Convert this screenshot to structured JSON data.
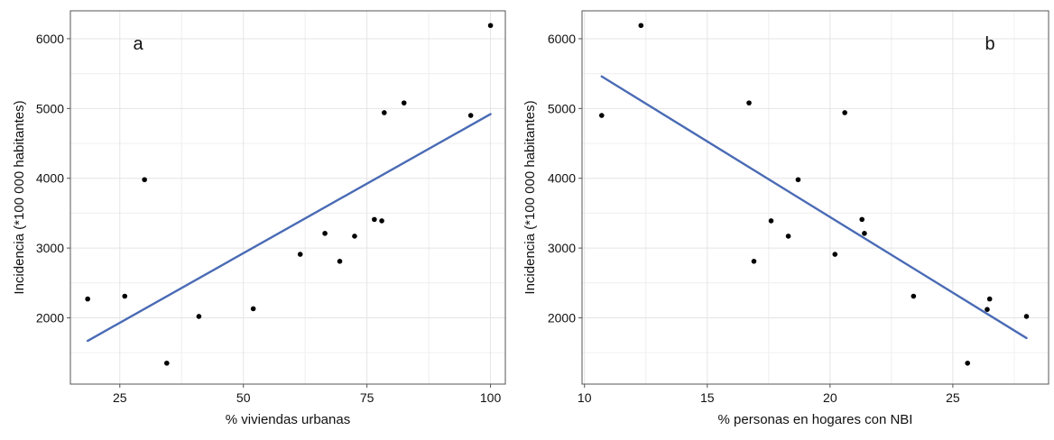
{
  "chart_data": [
    {
      "type": "scatter",
      "panel_label": "a",
      "xlabel": "% viviendas urbanas",
      "ylabel": "Incidencia (*100 000 habitantes)",
      "xlim": [
        15,
        103
      ],
      "ylim": [
        1050,
        6400
      ],
      "xticks": [
        25,
        50,
        75,
        100
      ],
      "yticks": [
        2000,
        3000,
        4000,
        5000,
        6000
      ],
      "grid": true,
      "points": [
        {
          "x": 18.5,
          "y": 2270
        },
        {
          "x": 26,
          "y": 2310
        },
        {
          "x": 30,
          "y": 3980
        },
        {
          "x": 34.5,
          "y": 1350
        },
        {
          "x": 41,
          "y": 2020
        },
        {
          "x": 52,
          "y": 2130
        },
        {
          "x": 61.5,
          "y": 2910
        },
        {
          "x": 66.5,
          "y": 3210
        },
        {
          "x": 69.5,
          "y": 2810
        },
        {
          "x": 72.5,
          "y": 3170
        },
        {
          "x": 76.5,
          "y": 3410
        },
        {
          "x": 78,
          "y": 3390
        },
        {
          "x": 78.5,
          "y": 4940
        },
        {
          "x": 82.5,
          "y": 5080
        },
        {
          "x": 96,
          "y": 4900
        },
        {
          "x": 100,
          "y": 6190
        }
      ],
      "trend": {
        "x": [
          18.5,
          100
        ],
        "y": [
          1670,
          4920
        ]
      },
      "trend_color": "#4a6bb5"
    },
    {
      "type": "scatter",
      "panel_label": "b",
      "xlabel": "% personas en hogares con NBI",
      "ylabel": "Incidencia (*100 000 habitantes)",
      "xlim": [
        9.9,
        28.9
      ],
      "ylim": [
        1050,
        6400
      ],
      "xticks": [
        10,
        15,
        20,
        25
      ],
      "yticks": [
        2000,
        3000,
        4000,
        5000,
        6000
      ],
      "grid": true,
      "points": [
        {
          "x": 10.7,
          "y": 4900
        },
        {
          "x": 12.3,
          "y": 6190
        },
        {
          "x": 16.7,
          "y": 5080
        },
        {
          "x": 16.9,
          "y": 2810
        },
        {
          "x": 17.6,
          "y": 3390
        },
        {
          "x": 18.3,
          "y": 3170
        },
        {
          "x": 18.7,
          "y": 3980
        },
        {
          "x": 20.2,
          "y": 2910
        },
        {
          "x": 20.6,
          "y": 4940
        },
        {
          "x": 21.3,
          "y": 3410
        },
        {
          "x": 21.4,
          "y": 3210
        },
        {
          "x": 23.4,
          "y": 2310
        },
        {
          "x": 25.6,
          "y": 1350
        },
        {
          "x": 26.4,
          "y": 2120
        },
        {
          "x": 26.5,
          "y": 2270
        },
        {
          "x": 28,
          "y": 2020
        }
      ],
      "trend": {
        "x": [
          10.7,
          28
        ],
        "y": [
          5460,
          1710
        ]
      },
      "trend_color": "#4a6bb5"
    }
  ]
}
